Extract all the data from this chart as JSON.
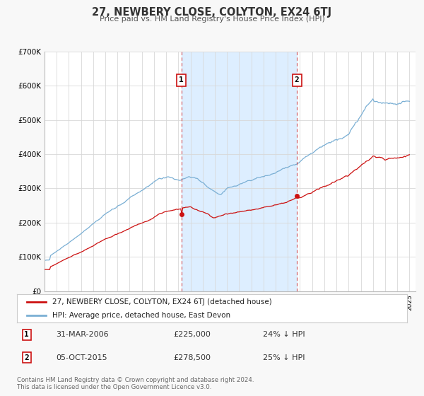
{
  "title": "27, NEWBERY CLOSE, COLYTON, EX24 6TJ",
  "subtitle": "Price paid vs. HM Land Registry's House Price Index (HPI)",
  "ylim": [
    0,
    700000
  ],
  "yticks": [
    0,
    100000,
    200000,
    300000,
    400000,
    500000,
    600000,
    700000
  ],
  "ytick_labels": [
    "£0",
    "£100K",
    "£200K",
    "£300K",
    "£400K",
    "£500K",
    "£600K",
    "£700K"
  ],
  "xlim_start": 1995.0,
  "xlim_end": 2025.5,
  "background_color": "#f8f8f8",
  "plot_bg_color": "#ffffff",
  "grid_color": "#d8d8d8",
  "hpi_color": "#7aafd4",
  "price_color": "#cc1111",
  "sale1_x": 2006.25,
  "sale1_y": 225000,
  "sale2_x": 2015.75,
  "sale2_y": 278500,
  "shade_color": "#ddeeff",
  "legend_label1": "27, NEWBERY CLOSE, COLYTON, EX24 6TJ (detached house)",
  "legend_label2": "HPI: Average price, detached house, East Devon",
  "table_row1_num": "1",
  "table_row1_date": "31-MAR-2006",
  "table_row1_price": "£225,000",
  "table_row1_hpi": "24% ↓ HPI",
  "table_row2_num": "2",
  "table_row2_date": "05-OCT-2015",
  "table_row2_price": "£278,500",
  "table_row2_hpi": "25% ↓ HPI",
  "footnote1": "Contains HM Land Registry data © Crown copyright and database right 2024.",
  "footnote2": "This data is licensed under the Open Government Licence v3.0."
}
